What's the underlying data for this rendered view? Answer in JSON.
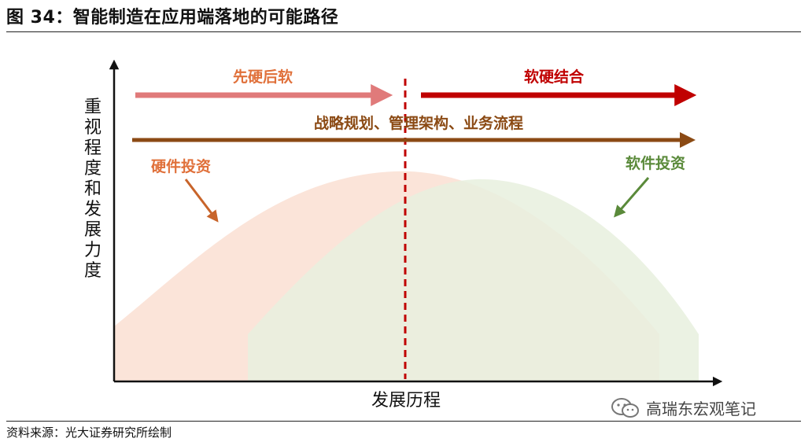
{
  "figure": {
    "title": "图 34：智能制造在应用端落地的可能路径",
    "source": "资料来源：光大证券研究所绘制",
    "watermark": "高瑞东宏观笔记"
  },
  "diagram": {
    "y_axis_label": [
      "重",
      "视",
      "程",
      "度",
      "和",
      "发",
      "展",
      "力",
      "度"
    ],
    "x_axis_label": "发展历程",
    "arrow_left_label": "先硬后软",
    "arrow_right_label": "软硬结合",
    "arrow_long_label": "战略规划、管理架构、业务流程",
    "hardware_label": "硬件投资",
    "software_label": "软件投资",
    "colors": {
      "hardware_fill": "#fbe1d5",
      "software_fill": "#e8f0de",
      "left_arrow": "#e07a7a",
      "right_arrow": "#c00000",
      "long_arrow": "#8b4a14",
      "hardware_text": "#e0703a",
      "software_text": "#5a8a3a",
      "divider": "#c00000"
    }
  }
}
